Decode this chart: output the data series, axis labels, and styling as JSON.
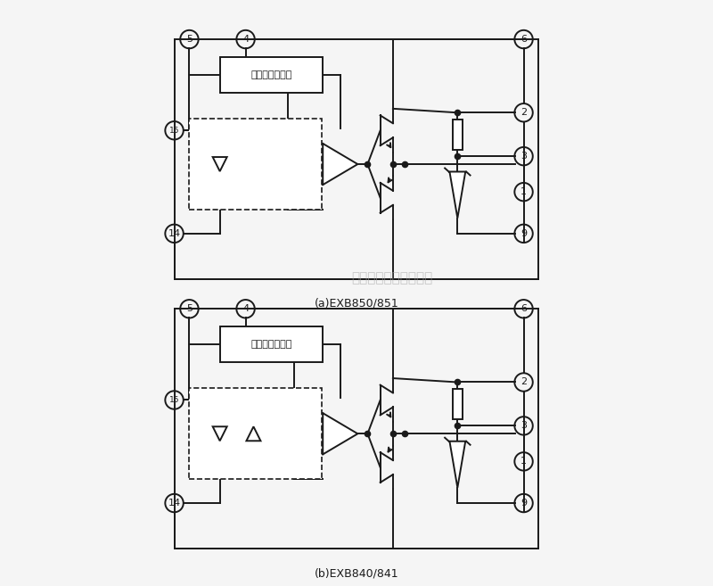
{
  "bg_color": "#f5f5f5",
  "line_color": "#1a1a1a",
  "title_a": "(a)EXB850/851",
  "title_b": "(b)EXB840/841",
  "protection_text": "过电流保护电路",
  "watermark": "杭州得睢科技有限公司",
  "fig_width": 8.0,
  "fig_height": 6.57,
  "dpi": 100
}
